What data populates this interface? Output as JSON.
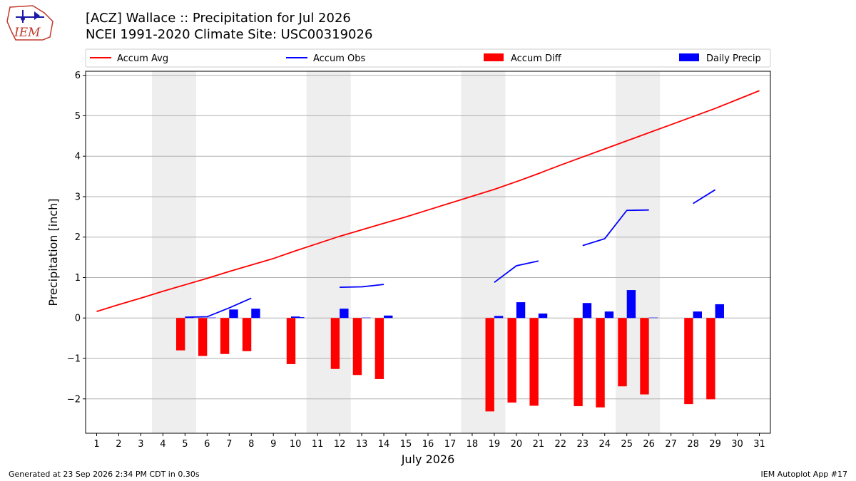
{
  "logo": {
    "text": "IEM"
  },
  "title": {
    "line1": "[ACZ] Wallace :: Precipitation for Jul 2026",
    "line2": "NCEI 1991-2020 Climate Site: USC00319026"
  },
  "footer": {
    "left": "Generated at 23 Sep 2026 2:34 PM CDT in 0.30s",
    "right": "IEM Autoplot App #17"
  },
  "colors": {
    "accum_avg": "#ff0000",
    "accum_obs": "#0000ff",
    "accum_diff": "#ff0000",
    "daily_precip": "#0000ff",
    "weekend_shade": "#eeeeee",
    "grid": "#b0b0b0"
  },
  "chart_data": {
    "type": "bar",
    "xlabel": "July 2026",
    "ylabel": "Precipitation [inch]",
    "xlim": [
      0.5,
      31.5
    ],
    "ylim": [
      -2.85,
      6.1
    ],
    "x_ticks": [
      "1",
      "2",
      "3",
      "4",
      "5",
      "6",
      "7",
      "8",
      "9",
      "10",
      "11",
      "12",
      "13",
      "14",
      "15",
      "16",
      "17",
      "18",
      "19",
      "20",
      "21",
      "22",
      "23",
      "24",
      "25",
      "26",
      "27",
      "28",
      "29",
      "30",
      "31"
    ],
    "y_ticks": [
      {
        "value": -2,
        "label": "−2"
      },
      {
        "value": -1,
        "label": "−1"
      },
      {
        "value": 0,
        "label": "0"
      },
      {
        "value": 1,
        "label": "1"
      },
      {
        "value": 2,
        "label": "2"
      },
      {
        "value": 3,
        "label": "3"
      },
      {
        "value": 4,
        "label": "4"
      },
      {
        "value": 5,
        "label": "5"
      },
      {
        "value": 6,
        "label": "6"
      }
    ],
    "grid": "horizontal",
    "legend_position": "top",
    "weekends": [
      [
        3.5,
        5.5
      ],
      [
        10.5,
        12.5
      ],
      [
        17.5,
        19.5
      ],
      [
        24.5,
        26.5
      ]
    ],
    "legend": [
      {
        "label": "Accum Avg",
        "kind": "line",
        "color": "#ff0000"
      },
      {
        "label": "Accum Obs",
        "kind": "line",
        "color": "#0000ff"
      },
      {
        "label": "Accum Diff",
        "kind": "bar",
        "color": "#ff0000"
      },
      {
        "label": "Daily Precip",
        "kind": "bar",
        "color": "#0000ff"
      }
    ],
    "accum_avg": {
      "x": [
        1,
        2,
        3,
        4,
        5,
        6,
        7,
        8,
        9,
        10,
        11,
        12,
        13,
        14,
        15,
        16,
        17,
        18,
        19,
        20,
        21,
        22,
        23,
        24,
        25,
        26,
        27,
        28,
        29,
        30,
        31
      ],
      "y": [
        0.16,
        0.33,
        0.49,
        0.66,
        0.82,
        0.98,
        1.15,
        1.31,
        1.47,
        1.66,
        1.84,
        2.02,
        2.18,
        2.34,
        2.5,
        2.67,
        2.84,
        3.01,
        3.18,
        3.37,
        3.57,
        3.78,
        3.98,
        4.18,
        4.38,
        4.58,
        4.78,
        4.98,
        5.18,
        5.4,
        5.62
      ]
    },
    "accum_obs": [
      {
        "x": [
          5,
          6,
          7,
          8
        ],
        "y": [
          0.02,
          0.03,
          0.25,
          0.49
        ]
      },
      {
        "x": [
          10
        ],
        "y": [
          0.02
        ]
      },
      {
        "x": [
          12,
          13,
          14
        ],
        "y": [
          0.76,
          0.77,
          0.83
        ]
      },
      {
        "x": [
          19,
          20,
          21
        ],
        "y": [
          0.88,
          1.29,
          1.41
        ]
      },
      {
        "x": [
          23,
          24,
          25,
          26
        ],
        "y": [
          1.79,
          1.96,
          2.66,
          2.67
        ]
      },
      {
        "x": [
          28,
          29
        ],
        "y": [
          2.83,
          3.17
        ]
      }
    ],
    "accum_diff": {
      "x": [
        5,
        6,
        7,
        8,
        10,
        12,
        13,
        14,
        19,
        20,
        21,
        23,
        24,
        25,
        26,
        28,
        29
      ],
      "y": [
        -0.8,
        -0.94,
        -0.89,
        -0.82,
        -1.14,
        -1.26,
        -1.41,
        -1.51,
        -2.31,
        -2.09,
        -2.17,
        -2.18,
        -2.21,
        -1.69,
        -1.89,
        -2.13,
        -2.01
      ]
    },
    "daily_precip": {
      "x": [
        5,
        6,
        7,
        8,
        10,
        12,
        13,
        14,
        19,
        20,
        21,
        23,
        24,
        25,
        26,
        28,
        29
      ],
      "y": [
        0.02,
        0.01,
        0.21,
        0.23,
        0.02,
        0.23,
        0.01,
        0.06,
        0.05,
        0.39,
        0.11,
        0.37,
        0.16,
        0.69,
        0.01,
        0.16,
        0.34
      ]
    }
  }
}
